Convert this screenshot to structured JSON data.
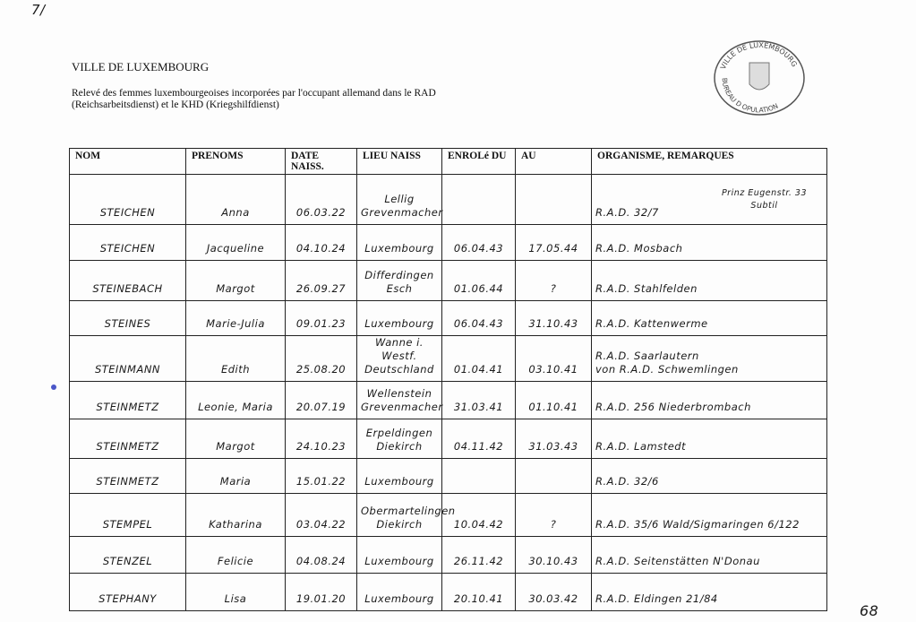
{
  "corner_mark": "7/",
  "title": "VILLE DE LUXEMBOURG",
  "subtitle": "Relevé des femmes luxembourgeoises incorporées par l'occupant allemand dans le RAD (Reichsarbeitsdienst) et le KHD (Kriegshilfdienst)",
  "stamp": {
    "text": "VILLE DE LUXEMBOURG · BUREAU DE LA POPULATION",
    "visible": "VILLE DE LUXEMBOURG BUREAU D... OPULATION"
  },
  "table": {
    "headers": [
      "NOM",
      "PRENOMS",
      "DATE NAISS.",
      "LIEU NAISS",
      "ENROLé DU",
      "AU",
      "ORGANISME, REMARQUES"
    ],
    "rows": [
      {
        "nom": "STEICHEN",
        "prenoms": "Anna",
        "date": "06.03.22",
        "lieu": [
          "Lellig",
          "Grevenmacher"
        ],
        "du": "",
        "au": "",
        "org": [
          "R.A.D. 32/7"
        ],
        "note": [
          "Prinz Eugenstr. 33",
          "Subtil"
        ]
      },
      {
        "nom": "STEICHEN",
        "prenoms": "Jacqueline",
        "date": "04.10.24",
        "lieu": [
          "Luxembourg"
        ],
        "du": "06.04.43",
        "au": "17.05.44",
        "org": [
          "R.A.D. Mosbach"
        ]
      },
      {
        "nom": "STEINEBACH",
        "prenoms": "Margot",
        "date": "26.09.27",
        "lieu": [
          "Differdingen",
          "Esch"
        ],
        "du": "01.06.44",
        "au": "?",
        "org": [
          "R.A.D. Stahlfelden"
        ]
      },
      {
        "nom": "STEINES",
        "prenoms": "Marie-Julia",
        "date": "09.01.23",
        "lieu": [
          "Luxembourg"
        ],
        "du": "06.04.43",
        "au": "31.10.43",
        "org": [
          "R.A.D. Kattenwerme"
        ]
      },
      {
        "nom": "STEINMANN",
        "prenoms": "Edith",
        "date": "25.08.20",
        "lieu": [
          "Wanne i. Westf.",
          "Deutschland"
        ],
        "du": "01.04.41",
        "au": "03.10.41",
        "org": [
          "R.A.D. Saarlautern",
          "von R.A.D. Schwemlingen"
        ]
      },
      {
        "nom": "STEINMETZ",
        "prenoms": "Leonie, Maria",
        "date": "20.07.19",
        "lieu": [
          "Wellenstein",
          "Grevenmacher"
        ],
        "du": "31.03.41",
        "au": "01.10.41",
        "org": [
          "R.A.D. 256 Niederbrombach"
        ]
      },
      {
        "nom": "STEINMETZ",
        "prenoms": "Margot",
        "date": "24.10.23",
        "lieu": [
          "Erpeldingen",
          "Diekirch"
        ],
        "du": "04.11.42",
        "au": "31.03.43",
        "org": [
          "R.A.D. Lamstedt"
        ]
      },
      {
        "nom": "STEINMETZ",
        "prenoms": "Maria",
        "date": "15.01.22",
        "lieu": [
          "Luxembourg"
        ],
        "du": "",
        "au": "",
        "org": [
          "R.A.D. 32/6"
        ]
      },
      {
        "nom": "STEMPEL",
        "prenoms": "Katharina",
        "date": "03.04.22",
        "lieu": [
          "Obermartelingen",
          "Diekirch"
        ],
        "du": "10.04.42",
        "au": "?",
        "org": [
          "R.A.D. 35/6 Wald/Sigmaringen 6/122"
        ]
      },
      {
        "nom": "STENZEL",
        "prenoms": "Felicie",
        "date": "04.08.24",
        "lieu": [
          "Luxembourg"
        ],
        "du": "26.11.42",
        "au": "30.10.43",
        "org": [
          "R.A.D. Seitenstätten N'Donau"
        ]
      },
      {
        "nom": "STEPHANY",
        "prenoms": "Lisa",
        "date": "19.01.20",
        "lieu": [
          "Luxembourg"
        ],
        "du": "20.10.41",
        "au": "30.03.42",
        "org": [
          "R.A.D. Eldingen 21/84"
        ]
      }
    ]
  },
  "page_number": "68"
}
